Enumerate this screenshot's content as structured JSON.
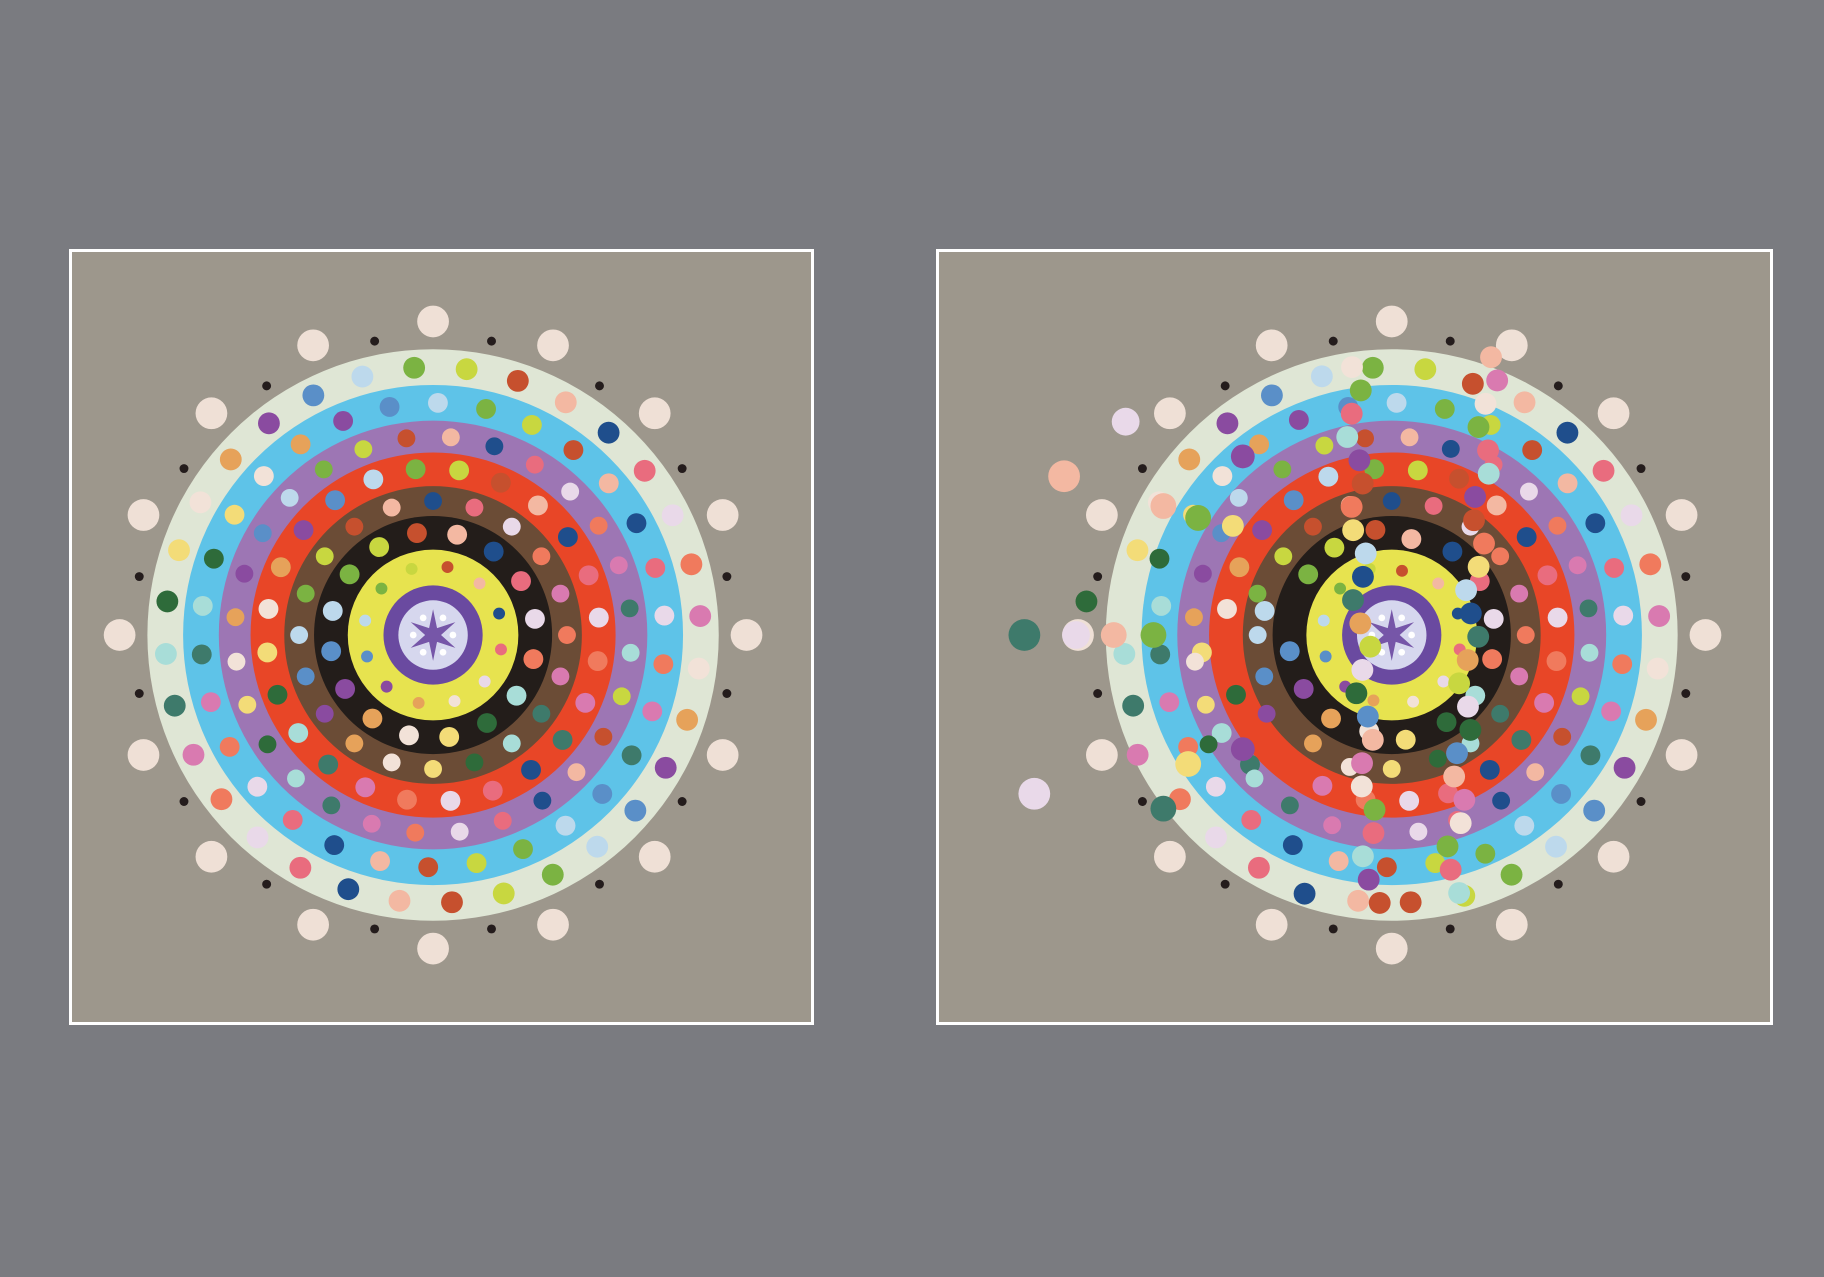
{
  "canvas": {
    "background": "#7a7b80"
  },
  "panels": [
    {
      "name": "original",
      "background": "#9d978c",
      "frame_color": "#ffffff",
      "state": "intact"
    },
    {
      "name": "scattered",
      "background": "#9d978c",
      "frame_color": "#ffffff",
      "state": "dots displaced along two diagonal streaks and a leftward spray"
    }
  ],
  "rings": [
    {
      "color": "#dfe6d5"
    },
    {
      "color": "#5ec3e8"
    },
    {
      "color": "#9d76b4"
    },
    {
      "color": "#e84627"
    },
    {
      "color": "#6b4c36"
    },
    {
      "color": "#231d1a"
    },
    {
      "color": "#e7e34f"
    },
    {
      "color": "#6a4aa0"
    },
    {
      "color": "#d6d7ee"
    }
  ],
  "dot_palette": [
    "#f2e2d8",
    "#e9d9e9",
    "#bdd9ec",
    "#a8ddd8",
    "#f3b8a2",
    "#e6a25a",
    "#f07a5d",
    "#7bb342",
    "#2e6b3a",
    "#1f4e8c",
    "#8a4ba0",
    "#d97ab0",
    "#c8d740",
    "#f3dc78",
    "#e96c7e",
    "#5a8fc8",
    "#3e7a6b",
    "#c6502e"
  ],
  "outer_dots": {
    "color": "#efe0d6",
    "count": 16
  },
  "tiny_dots": {
    "color": "#241c1c",
    "count": 16
  }
}
